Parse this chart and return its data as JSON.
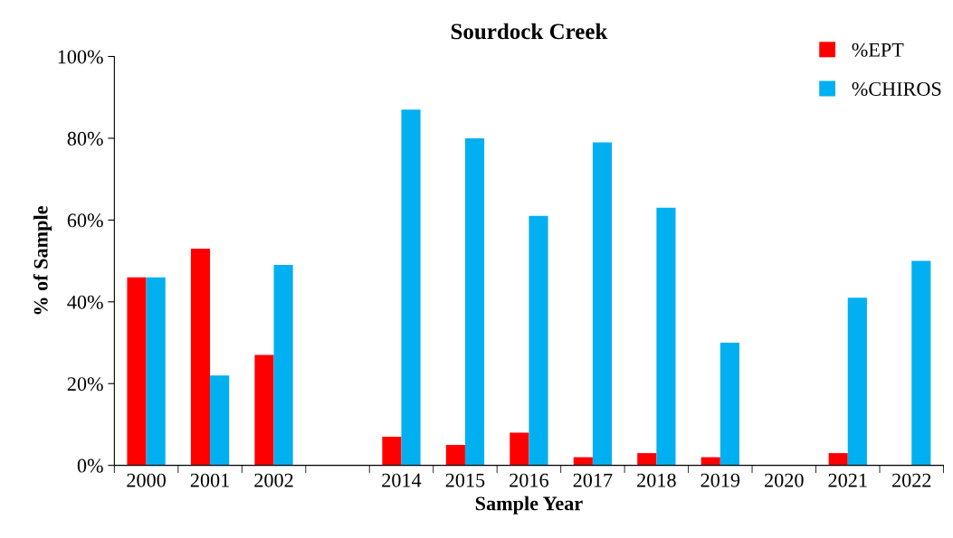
{
  "chart_data": {
    "type": "bar",
    "title": "Sourdock Creek",
    "xlabel": "Sample Year",
    "ylabel": "% of Sample",
    "categories": [
      "2000",
      "2001",
      "2002",
      null,
      "2014",
      "2015",
      "2016",
      "2017",
      "2018",
      "2019",
      "2020",
      "2021",
      "2022"
    ],
    "series": [
      {
        "name": "%EPT",
        "color": "#ff0000",
        "values": [
          46,
          53,
          27,
          null,
          7,
          5,
          8,
          2,
          3,
          2,
          null,
          3,
          null
        ]
      },
      {
        "name": "%CHIROS",
        "color": "#00b0f0",
        "values": [
          46,
          22,
          49,
          null,
          87,
          80,
          61,
          79,
          63,
          30,
          null,
          41,
          50
        ]
      }
    ],
    "ylim": [
      0,
      100
    ],
    "yticks": [
      {
        "value": 0,
        "label": "0%"
      },
      {
        "value": 20,
        "label": "20%"
      },
      {
        "value": 40,
        "label": "40%"
      },
      {
        "value": 60,
        "label": "60%"
      },
      {
        "value": 80,
        "label": "80%"
      },
      {
        "value": 100,
        "label": "100%"
      }
    ],
    "grid": false,
    "legend": "top right"
  }
}
